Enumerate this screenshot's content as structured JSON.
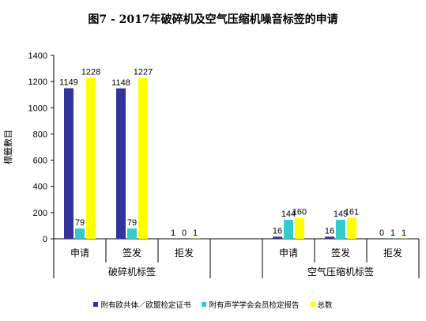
{
  "chart_data": {
    "type": "bar",
    "title": "图7 - 2017年破碎机及空气压缩机噪音标签的申请",
    "ylabel": "標籤數目",
    "ylim": [
      0,
      1400
    ],
    "yticks": [
      "0",
      "200",
      "400",
      "600",
      "800",
      "1000",
      "1200",
      "1400"
    ],
    "grid": false,
    "legend_position": "bottom",
    "groups": [
      {
        "name": "破碎机标签",
        "categories": [
          "申请",
          "签发",
          "拒发"
        ]
      },
      {
        "name": "空气压缩机标签",
        "categories": [
          "申请",
          "签发",
          "拒发"
        ]
      }
    ],
    "series": [
      {
        "name": "附有欧共体／欧盟检定证书",
        "color": "#333399",
        "values": [
          [
            1149,
            1148,
            1
          ],
          [
            16,
            16,
            0
          ]
        ],
        "labels": [
          [
            "1149",
            "1148",
            "1"
          ],
          [
            "16",
            "16",
            "0"
          ]
        ]
      },
      {
        "name": "附有声学学会会员检定报告",
        "color": "#33CCCC",
        "values": [
          [
            79,
            79,
            0
          ],
          [
            144,
            145,
            1
          ]
        ],
        "labels": [
          [
            "79",
            "79",
            "0"
          ],
          [
            "144",
            "145",
            "1"
          ]
        ]
      },
      {
        "name": "总数",
        "color": "#FFFF00",
        "values": [
          [
            1228,
            1227,
            1
          ],
          [
            160,
            161,
            1
          ]
        ],
        "labels": [
          [
            "1228",
            "1227",
            "1"
          ],
          [
            "160",
            "161",
            "1"
          ]
        ]
      }
    ]
  }
}
